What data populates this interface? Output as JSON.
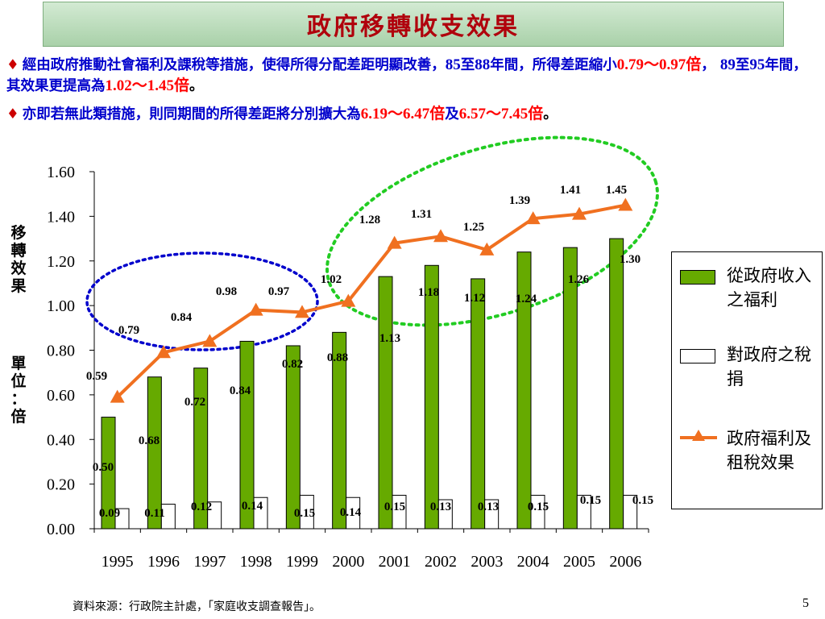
{
  "title": "政府移轉收支效果",
  "bullets": [
    {
      "p1": "經由政府推動社會福利及課稅等措施，使得所得分配差距明顯改善，",
      "p2": "85",
      "p3": "至",
      "p4": "88",
      "p5": "年間，所得差距縮小",
      "p6": "0.79～0.97倍",
      "p7": "，",
      "p8": "89",
      "p9": "至",
      "p10": "95",
      "p11": "年間，其效果更提高為",
      "p12": "1.02～1.45倍",
      "p13": "。"
    },
    {
      "p1": "亦即若無此類措施，則同期間的所得差距將分別擴大為",
      "p2": "6.19～6.47倍",
      "p3": "及",
      "p4": "6.57～7.45倍",
      "p5": "。"
    }
  ],
  "chart_data": {
    "type": "bar",
    "categories": [
      "1995",
      "1996",
      "1997",
      "1998",
      "1999",
      "2000",
      "2001",
      "2002",
      "2003",
      "2004",
      "2005",
      "2006"
    ],
    "series": [
      {
        "name": "從政府收入之福利",
        "type": "bar",
        "color": "#66aa00",
        "values": [
          0.5,
          0.68,
          0.72,
          0.84,
          0.82,
          0.88,
          1.13,
          1.18,
          1.12,
          1.24,
          1.26,
          1.3
        ],
        "labels": [
          "0.50",
          "0.68",
          "0.72",
          "0.84",
          "0.82",
          "0.88",
          "1.13",
          "1.18",
          "1.12",
          "1.24",
          "1.26",
          "1.30"
        ]
      },
      {
        "name": "對政府之稅捐",
        "type": "bar",
        "color": "#ffffff",
        "values": [
          0.09,
          0.11,
          0.12,
          0.14,
          0.15,
          0.14,
          0.15,
          0.13,
          0.13,
          0.15,
          0.15,
          0.15
        ],
        "labels": [
          "0.09",
          "0.11",
          "0.12",
          "0.14",
          "0.15",
          "0.14",
          "0.15",
          "0.13",
          "0.13",
          "0.15",
          "0.15",
          "0.15"
        ]
      },
      {
        "name": "政府福利及租稅效果",
        "type": "line",
        "color": "#f07020",
        "values": [
          0.59,
          0.79,
          0.84,
          0.98,
          0.97,
          1.02,
          1.28,
          1.31,
          1.25,
          1.39,
          1.41,
          1.45
        ],
        "labels": [
          "0.59",
          "0.79",
          "0.84",
          "0.98",
          "0.97",
          "1.02",
          "1.28",
          "1.31",
          "1.25",
          "1.39",
          "1.41",
          "1.45"
        ]
      }
    ],
    "ylabel": "移轉效果 單位：倍",
    "ylim": [
      0,
      1.6
    ],
    "yticks": [
      "0.00",
      "0.20",
      "0.40",
      "0.60",
      "0.80",
      "1.00",
      "1.20",
      "1.40",
      "1.60"
    ],
    "grid": false,
    "legend_position": "right",
    "annotations": [
      "blue dotted ellipse around 1995-2000 line",
      "green dotted ellipse around 2000-2006 line"
    ]
  },
  "ylabel_top": [
    "移",
    "轉",
    "效",
    "果"
  ],
  "ylabel_bottom": [
    "單",
    "位",
    "：",
    "倍"
  ],
  "legend": [
    {
      "label": "從政府收入之福利"
    },
    {
      "label": "對政府之稅捐"
    },
    {
      "label": "政府福利及租稅效果"
    }
  ],
  "source": "資料來源：行政院主計處，「家庭收支調查報告」。",
  "page_number": "5"
}
